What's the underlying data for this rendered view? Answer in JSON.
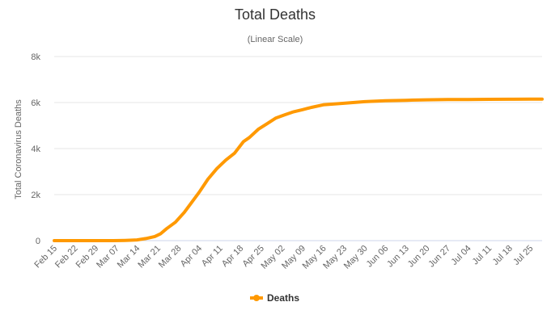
{
  "chart_data": {
    "type": "line",
    "title": "Total Deaths",
    "subtitle": "(Linear Scale)",
    "xlabel": "",
    "ylabel": "Total Coronavirus Deaths",
    "ylim": [
      0,
      8000
    ],
    "yticks": [
      0,
      2000,
      4000,
      6000,
      8000
    ],
    "ytick_labels": [
      "0",
      "2k",
      "4k",
      "6k",
      "8k"
    ],
    "x_start": "Feb 15",
    "x_end_day": 165,
    "xtick_labels": [
      "Feb 15",
      "Feb 22",
      "Feb 29",
      "Mar 07",
      "Mar 14",
      "Mar 21",
      "Mar 28",
      "Apr 04",
      "Apr 11",
      "Apr 18",
      "Apr 25",
      "May 02",
      "May 09",
      "May 16",
      "May 23",
      "May 30",
      "Jun 06",
      "Jun 13",
      "Jun 20",
      "Jun 27",
      "Jul 04",
      "Jul 11",
      "Jul 18",
      "Jul 25"
    ],
    "grid": true,
    "legend": "bottom-center",
    "color": "#FF9900",
    "series": [
      {
        "name": "Deaths",
        "day": [
          0,
          7,
          14,
          20,
          24,
          28,
          31,
          34,
          36,
          38,
          41,
          44,
          47,
          49,
          52,
          55,
          58,
          61,
          64,
          66,
          69,
          72,
          75,
          78,
          81,
          84,
          87,
          91,
          98,
          105,
          112,
          119,
          126,
          133,
          140,
          147,
          154,
          161,
          165
        ],
        "values": [
          0,
          0,
          0,
          0,
          10,
          30,
          90,
          180,
          300,
          520,
          800,
          1230,
          1750,
          2100,
          2670,
          3130,
          3500,
          3800,
          4300,
          4480,
          4840,
          5080,
          5330,
          5470,
          5600,
          5690,
          5790,
          5900,
          5970,
          6040,
          6080,
          6100,
          6120,
          6130,
          6135,
          6140,
          6145,
          6150,
          6150
        ]
      }
    ]
  }
}
